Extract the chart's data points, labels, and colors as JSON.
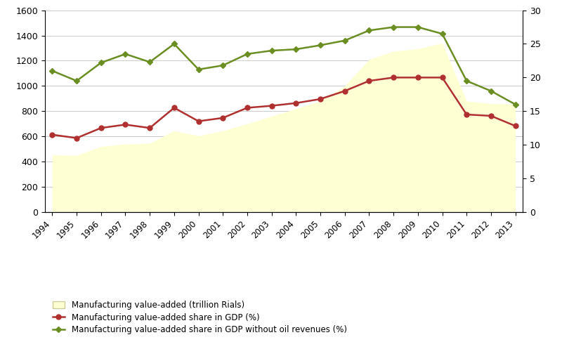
{
  "years": [
    1994,
    1995,
    1996,
    1997,
    1998,
    1999,
    2000,
    2001,
    2002,
    2003,
    2004,
    2005,
    2006,
    2007,
    2008,
    2009,
    2010,
    2011,
    2012,
    2013
  ],
  "mva_trillion": [
    455,
    450,
    520,
    540,
    545,
    645,
    605,
    645,
    700,
    760,
    820,
    880,
    1000,
    1210,
    1275,
    1295,
    1340,
    880,
    860,
    855
  ],
  "mva_gdp_pct": [
    11.5,
    11.0,
    12.5,
    13.0,
    12.5,
    15.5,
    13.5,
    14.0,
    15.5,
    15.8,
    16.2,
    16.8,
    18.0,
    19.5,
    20.0,
    20.0,
    20.0,
    14.5,
    14.3,
    12.8
  ],
  "mva_gdp_nooil_pct": [
    21.0,
    19.5,
    22.2,
    23.5,
    22.3,
    25.0,
    21.2,
    21.8,
    23.5,
    24.0,
    24.2,
    24.8,
    25.5,
    27.0,
    27.5,
    27.5,
    26.5,
    19.5,
    18.0,
    16.0
  ],
  "fill_color": "#FFFFD4",
  "red_line_color": "#B03030",
  "green_line_color": "#6B8E23",
  "ylim_left": [
    0,
    1600
  ],
  "ylim_right": [
    0,
    30
  ],
  "yticks_left": [
    0,
    200,
    400,
    600,
    800,
    1000,
    1200,
    1400,
    1600
  ],
  "yticks_right": [
    0,
    5,
    10,
    15,
    20,
    25,
    30
  ],
  "grid_color": "#CCCCCC",
  "legend_labels": [
    "Manufacturing value-added (trillion Rials)",
    "Manufacturing value-added share in GDP (%)",
    "Manufacturing value-added share in GDP without oil revenues (%)"
  ],
  "figsize": [
    8.0,
    4.87
  ],
  "dpi": 100
}
